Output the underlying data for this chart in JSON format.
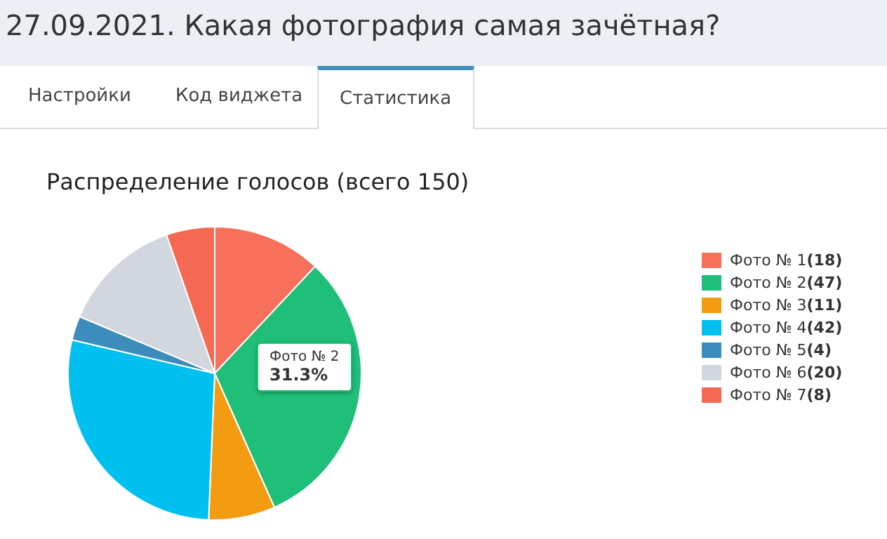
{
  "chart_data": {
    "type": "pie",
    "title": "Распределение голосов (всего 150)",
    "categories": [
      "Фото № 1",
      "Фото № 2",
      "Фото № 3",
      "Фото № 4",
      "Фото № 5",
      "Фото № 6",
      "Фото № 7"
    ],
    "values": [
      18,
      47,
      11,
      42,
      4,
      20,
      8
    ],
    "colors": [
      "#f7705b",
      "#1fbf7a",
      "#f39c12",
      "#00c0ef",
      "#3c8dbc",
      "#d2d6de",
      "#f56954"
    ],
    "value_labels": [
      "(18)",
      "(47)",
      "(11)",
      "(42)",
      "(4)",
      "(20)",
      "(8)"
    ],
    "legend": "right",
    "annotations": [
      "27.09.2021. Какая фотография самая зачётная?",
      "Настройки",
      "Код виджета",
      "Статистика",
      "Фото № 2",
      "31.3%"
    ]
  }
}
